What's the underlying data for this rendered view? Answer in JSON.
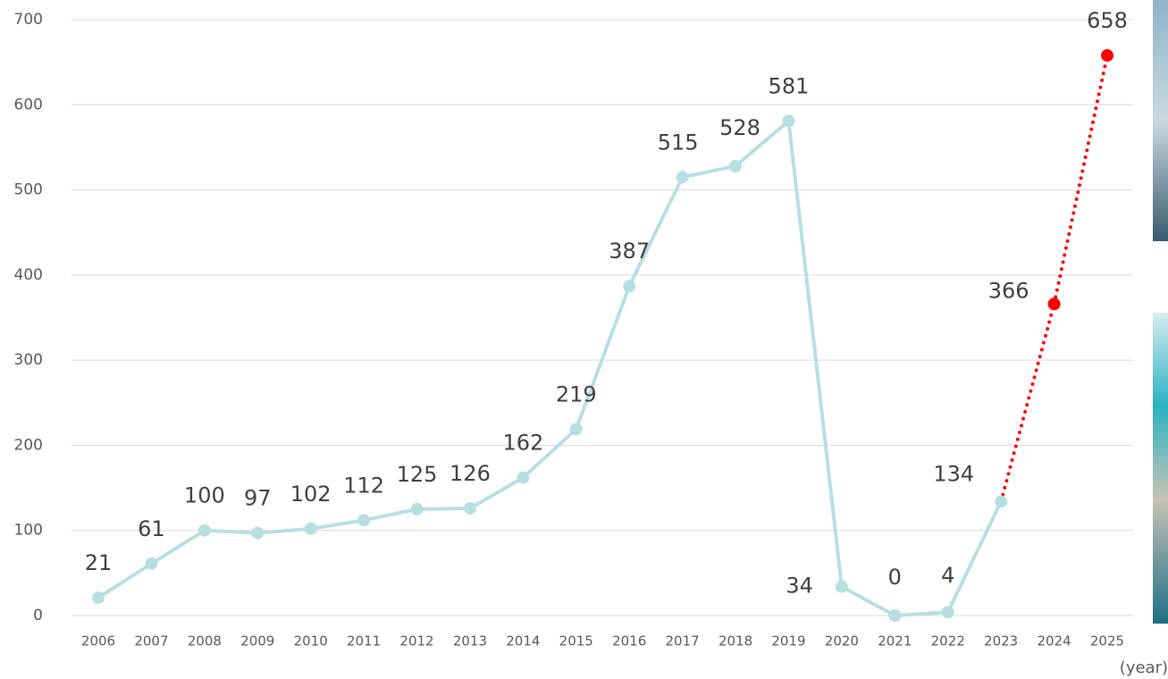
{
  "chart_data": {
    "type": "line",
    "categories": [
      "2006",
      "2007",
      "2008",
      "2009",
      "2010",
      "2011",
      "2012",
      "2013",
      "2014",
      "2015",
      "2016",
      "2017",
      "2018",
      "2019",
      "2020",
      "2021",
      "2022",
      "2023",
      "2024",
      "2025"
    ],
    "series": [
      {
        "color": "#b7dfe2",
        "style": "solid",
        "values": [
          21,
          61,
          100,
          97,
          102,
          112,
          125,
          126,
          162,
          219,
          387,
          515,
          528,
          581,
          34,
          0,
          4,
          134,
          null,
          null
        ]
      },
      {
        "color": "#ff0000",
        "style": "dotted",
        "values": [
          null,
          null,
          null,
          null,
          null,
          null,
          null,
          null,
          null,
          null,
          null,
          null,
          null,
          null,
          null,
          null,
          null,
          null,
          366,
          658
        ]
      }
    ],
    "ylim": [
      0,
      700
    ],
    "yticks": [
      0,
      100,
      200,
      300,
      400,
      500,
      600,
      700
    ],
    "grid": true,
    "x_label": "(year)"
  }
}
